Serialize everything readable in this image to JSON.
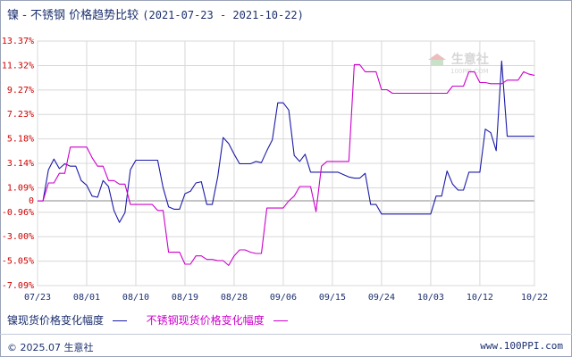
{
  "header": {
    "commodity": "镍",
    "separator": " - ",
    "title": "不锈钢 价格趋势比较",
    "date_range": "(2021-07-23 - 2021-10-22)"
  },
  "chart_data": {
    "type": "line",
    "ylim": [
      -7.09,
      13.37
    ],
    "y_ticks": [
      "13.37%",
      "11.32%",
      "9.27%",
      "7.23%",
      "5.18%",
      "3.14%",
      "1.09%",
      "0",
      "-0.96%",
      "-3.00%",
      "-5.05%",
      "-7.09%"
    ],
    "y_tick_values": [
      13.37,
      11.32,
      9.27,
      7.23,
      5.18,
      3.14,
      1.09,
      0,
      -0.96,
      -3.0,
      -5.05,
      -7.09
    ],
    "x_range": [
      0,
      91
    ],
    "x_ticks": [
      "07/23",
      "08/01",
      "08/10",
      "08/19",
      "08/28",
      "09/06",
      "09/15",
      "09/24",
      "10/03",
      "10/12",
      "10/22"
    ],
    "x_tick_days": [
      0,
      9,
      18,
      27,
      36,
      45,
      54,
      63,
      72,
      81,
      91
    ],
    "grid": true,
    "series": [
      {
        "name": "镍现货价格变化幅度",
        "color": "#1a1aa8",
        "x": [
          0,
          1,
          2,
          3,
          4,
          5,
          6,
          7,
          8,
          9,
          10,
          11,
          12,
          13,
          14,
          15,
          16,
          17,
          18,
          19,
          20,
          21,
          22,
          23,
          24,
          25,
          26,
          27,
          28,
          29,
          30,
          31,
          32,
          33,
          34,
          35,
          36,
          37,
          38,
          39,
          40,
          41,
          42,
          43,
          44,
          45,
          46,
          47,
          48,
          49,
          50,
          51,
          52,
          53,
          54,
          55,
          56,
          57,
          58,
          59,
          60,
          61,
          62,
          63,
          64,
          65,
          66,
          67,
          68,
          69,
          70,
          71,
          72,
          73,
          74,
          75,
          76,
          77,
          78,
          79,
          80,
          81,
          82,
          83,
          84,
          85,
          86,
          87,
          88,
          89,
          90,
          91
        ],
        "values": [
          0,
          0,
          2.6,
          3.5,
          2.7,
          3.1,
          2.9,
          2.9,
          1.7,
          1.3,
          0.4,
          0.3,
          1.7,
          1.2,
          -0.8,
          -1.8,
          -1.0,
          2.6,
          3.4,
          3.4,
          3.4,
          3.4,
          3.4,
          1.1,
          -0.5,
          -0.7,
          -0.7,
          0.6,
          0.8,
          1.5,
          1.6,
          -0.3,
          -0.3,
          2.0,
          5.3,
          4.8,
          3.9,
          3.1,
          3.1,
          3.1,
          3.3,
          3.2,
          4.2,
          5.1,
          8.2,
          8.2,
          7.6,
          3.8,
          3.3,
          3.9,
          2.4,
          2.4,
          2.4,
          2.4,
          2.4,
          2.4,
          2.2,
          2.0,
          1.9,
          1.9,
          2.3,
          -0.3,
          -0.3,
          -1.1,
          -1.1,
          -1.1,
          -1.1,
          -1.1,
          -1.1,
          -1.1,
          -1.1,
          -1.1,
          -1.1,
          0.4,
          0.4,
          2.5,
          1.4,
          0.9,
          0.9,
          2.4,
          2.4,
          2.4,
          6.0,
          5.7,
          4.2,
          11.7,
          5.4,
          5.4,
          5.4,
          5.4,
          5.4,
          5.4
        ]
      },
      {
        "name": "不锈钢现货价格变化幅度",
        "color": "#cc00cc",
        "x": [
          0,
          1,
          2,
          3,
          4,
          5,
          6,
          7,
          8,
          9,
          10,
          11,
          12,
          13,
          14,
          15,
          16,
          17,
          18,
          19,
          20,
          21,
          22,
          23,
          24,
          25,
          26,
          27,
          28,
          29,
          30,
          31,
          32,
          33,
          34,
          35,
          36,
          37,
          38,
          39,
          40,
          41,
          42,
          43,
          44,
          45,
          46,
          47,
          48,
          49,
          50,
          51,
          52,
          53,
          54,
          55,
          56,
          57,
          58,
          59,
          60,
          61,
          62,
          63,
          64,
          65,
          66,
          67,
          68,
          69,
          70,
          71,
          72,
          73,
          74,
          75,
          76,
          77,
          78,
          79,
          80,
          81,
          82,
          83,
          84,
          85,
          86,
          87,
          88,
          89,
          90,
          91
        ],
        "values": [
          0,
          0,
          1.5,
          1.5,
          2.3,
          2.3,
          4.5,
          4.5,
          4.5,
          4.5,
          3.6,
          2.9,
          2.9,
          1.7,
          1.7,
          1.4,
          1.4,
          -0.3,
          -0.3,
          -0.3,
          -0.3,
          -0.3,
          -0.8,
          -0.8,
          -4.3,
          -4.3,
          -4.3,
          -5.3,
          -5.3,
          -4.6,
          -4.6,
          -4.9,
          -4.9,
          -5.0,
          -5.0,
          -5.4,
          -4.6,
          -4.1,
          -4.1,
          -4.3,
          -4.4,
          -4.4,
          -0.6,
          -0.6,
          -0.6,
          -0.6,
          0.0,
          0.4,
          1.2,
          1.2,
          1.2,
          -0.9,
          2.9,
          3.3,
          3.3,
          3.3,
          3.3,
          3.3,
          11.4,
          11.4,
          10.8,
          10.8,
          10.8,
          9.3,
          9.3,
          9.0,
          9.0,
          9.0,
          9.0,
          9.0,
          9.0,
          9.0,
          9.0,
          9.0,
          9.0,
          9.0,
          9.6,
          9.6,
          9.6,
          10.8,
          10.8,
          9.9,
          9.9,
          9.8,
          9.8,
          9.8,
          10.1,
          10.1,
          10.1,
          10.8,
          10.6,
          10.5
        ]
      }
    ]
  },
  "legend": [
    {
      "label": "镍现货价格变化幅度"
    },
    {
      "label": "不锈钢现货价格变化幅度"
    }
  ],
  "watermark": {
    "text": "生意社",
    "small": "100PPI.COM"
  },
  "footer": {
    "copyright": "© 2025.07 生意社",
    "url": "www.100PPI.com"
  }
}
